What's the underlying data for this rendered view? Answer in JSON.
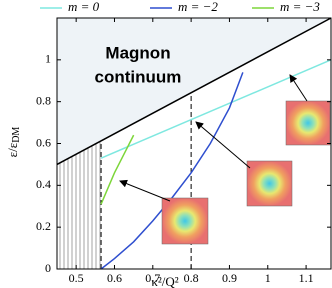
{
  "chart_data": {
    "type": "line",
    "annotation": [
      "Magnon",
      "continuum"
    ],
    "x_label": "κ²/Q²",
    "y_label": {
      "main": "ε/ε",
      "sub": "DM"
    },
    "xlim": [
      0.45,
      1.165
    ],
    "ylim": [
      0,
      1.2
    ],
    "xticks": [
      0.5,
      0.6,
      0.7,
      0.8,
      0.9,
      1,
      1.1
    ],
    "yticks": [
      0,
      0.2,
      0.4,
      0.6,
      0.8,
      1
    ],
    "vlines": [
      0.565,
      0.8
    ],
    "boundary": {
      "color": "#000000",
      "x": [
        0.45,
        1.165
      ],
      "values": [
        0.5,
        1.2
      ]
    },
    "series": [
      {
        "name": "m = 0",
        "color": "#7fe8e0",
        "x": [
          0.565,
          1.165
        ],
        "values": [
          0.53,
          1.0
        ]
      },
      {
        "name": "m = −2",
        "color": "#2f4fcf",
        "x": [
          0.565,
          0.6,
          0.65,
          0.7,
          0.75,
          0.8,
          0.85,
          0.9,
          0.935
        ],
        "values": [
          0,
          0.05,
          0.13,
          0.23,
          0.34,
          0.46,
          0.6,
          0.77,
          0.94
        ]
      },
      {
        "name": "m = −3",
        "color": "#7dd63a",
        "x": [
          0.565,
          0.6,
          0.65
        ],
        "values": [
          0.31,
          0.46,
          0.64
        ]
      }
    ]
  }
}
